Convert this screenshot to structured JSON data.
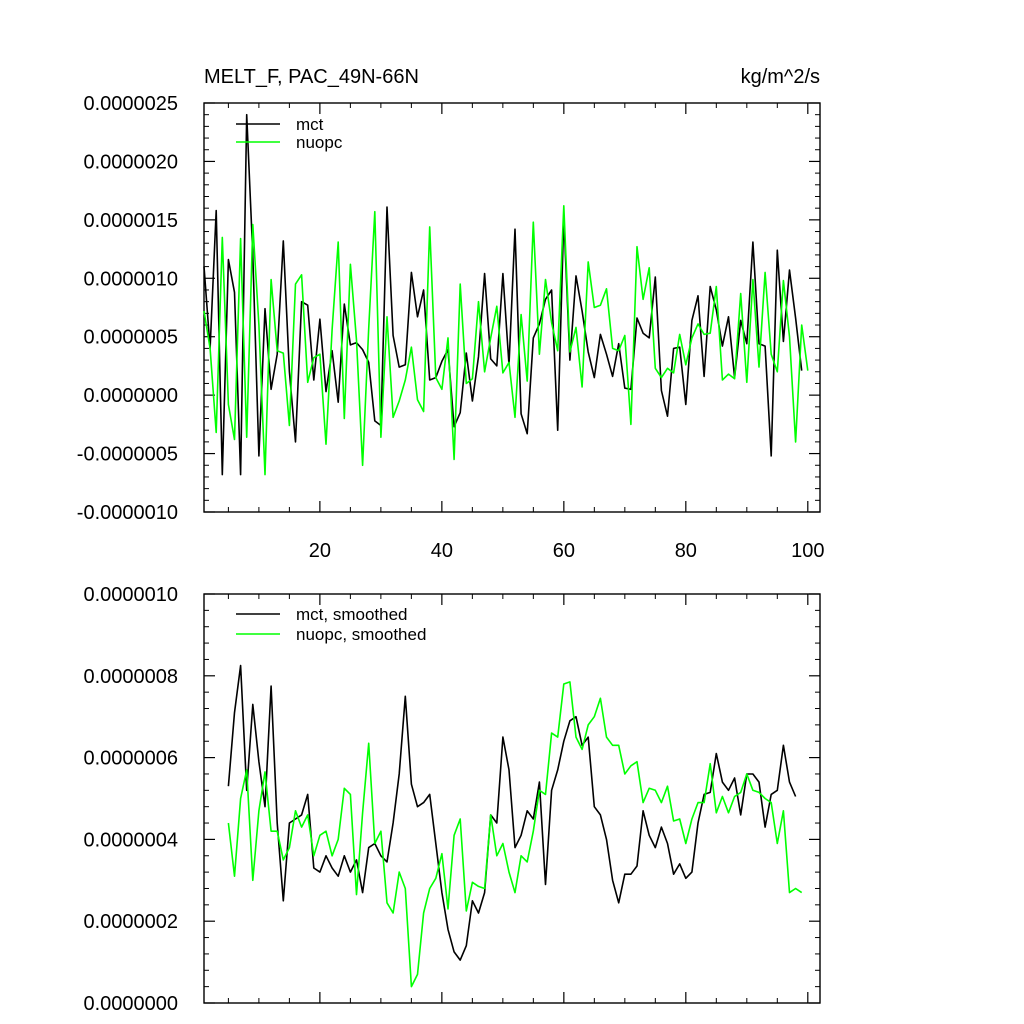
{
  "colors": {
    "mct": "#000000",
    "nuopc": "#00ff00",
    "frame": "#000000"
  },
  "chart_data": [
    {
      "type": "line",
      "title": "MELT_F, PAC_49N-66N",
      "units": "kg/m^2/s",
      "xlim": [
        1,
        102
      ],
      "ylim": [
        -1e-06,
        2.5e-06
      ],
      "x_ticks": [
        20,
        40,
        60,
        80,
        100
      ],
      "x_tick_labels": [
        "20",
        "40",
        "60",
        "80",
        "100"
      ],
      "y_ticks": [
        -1e-06,
        -5e-07,
        0,
        5e-07,
        1e-06,
        1.5e-06,
        2e-06,
        2.5e-06
      ],
      "y_tick_labels": [
        "-0.0000010",
        "-0.0000005",
        "0.0000000",
        "0.0000005",
        "0.0000010",
        "0.0000015",
        "0.0000020",
        "0.0000025"
      ],
      "legend_position": "top-left",
      "x_start": 1,
      "series": [
        {
          "name": "mct",
          "color": "#000000",
          "values": [
            1.1e-06,
            4e-07,
            1.58e-06,
            -6.8e-07,
            1.16e-06,
            8.8e-07,
            -6.8e-07,
            2.4e-06,
            1.2e-06,
            -5.2e-07,
            7.4e-07,
            5e-08,
            3.5e-07,
            1.32e-06,
            2e-07,
            -4e-07,
            8e-07,
            7.7e-07,
            1.3e-07,
            6.5e-07,
            3e-08,
            3.8e-07,
            -6e-08,
            7.8e-07,
            4.3e-07,
            4.5e-07,
            3.9e-07,
            2.8e-07,
            -2.2e-07,
            -2.6e-07,
            1.61e-06,
            5.1e-07,
            2.4e-07,
            2.6e-07,
            1.05e-06,
            6.7e-07,
            9e-07,
            1.3e-07,
            1.5e-07,
            2.9e-07,
            3.9e-07,
            -2.7e-07,
            -1.5e-07,
            3.6e-07,
            -5e-08,
            3.3e-07,
            1.04e-06,
            3.1e-07,
            2.5e-07,
            1.04e-06,
            2.6e-07,
            1.42e-06,
            -1.6e-07,
            -3.3e-07,
            4.9e-07,
            6.1e-07,
            8.2e-07,
            9e-07,
            -3e-07,
            1.52e-06,
            3e-07,
            1.02e-06,
            7.2e-07,
            3.7e-07,
            1.5e-07,
            5.2e-07,
            3.5e-07,
            1.6e-07,
            4.4e-07,
            6e-08,
            5e-08,
            6.6e-07,
            5.3e-07,
            4.9e-07,
            1.01e-06,
            4e-08,
            -1.8e-07,
            4e-07,
            4.1e-07,
            -8e-08,
            6.4e-07,
            8.5e-07,
            1.6e-07,
            9.3e-07,
            7.3e-07,
            4.2e-07,
            6.7e-07,
            1.5e-07,
            6.4e-07,
            4.4e-07,
            1.31e-06,
            4.4e-07,
            4.2e-07,
            -5.2e-07,
            1.24e-06,
            4.6e-07,
            1.07e-06,
            6.6e-07,
            2.1e-07
          ]
        },
        {
          "name": "nuopc",
          "color": "#00ff00",
          "values": [
            7.2e-07,
            4e-07,
            -3.2e-07,
            1.35e-06,
            -8e-08,
            -3.8e-07,
            1.34e-06,
            -3.6e-07,
            1.46e-06,
            6e-07,
            -6.8e-07,
            9.9e-07,
            3.8e-07,
            3.6e-07,
            -2.6e-07,
            9.5e-07,
            1.03e-06,
            1.1e-07,
            3.2e-07,
            3.5e-07,
            -4.2e-07,
            5.6e-07,
            1.31e-06,
            -2e-07,
            1.12e-06,
            4.7e-07,
            -6e-07,
            5.7e-07,
            1.57e-06,
            -3.6e-07,
            6.7e-07,
            -1.9e-07,
            -5e-08,
            1.3e-07,
            4.1e-07,
            -4e-08,
            -1.4e-07,
            1.44e-06,
            1.5e-07,
            5e-08,
            4.9e-07,
            -5.5e-07,
            9.5e-07,
            1e-07,
            1.4e-07,
            8e-07,
            2e-07,
            4.9e-07,
            7.6e-07,
            1.9e-07,
            2.8e-07,
            -1.9e-07,
            6.9e-07,
            1.2e-07,
            1.48e-06,
            3.5e-07,
            9.9e-07,
            6.2e-07,
            3.8e-07,
            1.62e-06,
            3.7e-07,
            5.8e-07,
            7e-08,
            1.14e-06,
            7.5e-07,
            7.7e-07,
            9.1e-07,
            4e-07,
            3.8e-07,
            5.1e-07,
            -2.5e-07,
            1.27e-06,
            8.2e-07,
            1.09e-06,
            2.3e-07,
            1.5e-07,
            2.3e-07,
            1.9e-07,
            5.2e-07,
            2.6e-07,
            4.9e-07,
            6.1e-07,
            5.2e-07,
            5.3e-07,
            9.3e-07,
            1.3e-07,
            1.8e-07,
            1.4e-07,
            8.7e-07,
            1.1e-07,
            9.9e-07,
            2.4e-07,
            1.05e-06,
            3.5e-07,
            2e-07,
            9.8e-07,
            5e-07,
            -4e-07,
            6e-07,
            2.1e-07
          ]
        }
      ]
    },
    {
      "type": "line",
      "xlim": [
        1,
        102
      ],
      "ylim": [
        0,
        1e-06
      ],
      "y_ticks": [
        0,
        2e-07,
        4e-07,
        6e-07,
        8e-07,
        1e-06
      ],
      "y_tick_labels": [
        "0.0000000",
        "0.0000002",
        "0.0000004",
        "0.0000006",
        "0.0000008",
        "0.0000010"
      ],
      "x_ticks": [
        20,
        40,
        60,
        80,
        100
      ],
      "legend_position": "top-left",
      "x_start": 5,
      "series": [
        {
          "name": "mct, smoothed",
          "color": "#000000",
          "values": [
            5.3e-07,
            7.1e-07,
            8.25e-07,
            5.2e-07,
            7.3e-07,
            5.9e-07,
            4.8e-07,
            7.75e-07,
            4.4e-07,
            2.5e-07,
            4.4e-07,
            4.5e-07,
            4.6e-07,
            5.1e-07,
            3.3e-07,
            3.2e-07,
            3.6e-07,
            3.3e-07,
            3.1e-07,
            3.6e-07,
            3.2e-07,
            3.5e-07,
            2.7e-07,
            3.8e-07,
            3.9e-07,
            3.6e-07,
            3.45e-07,
            4.4e-07,
            5.6e-07,
            7.5e-07,
            5.35e-07,
            4.8e-07,
            4.9e-07,
            5.1e-07,
            3.9e-07,
            2.7e-07,
            1.8e-07,
            1.25e-07,
            1.05e-07,
            1.4e-07,
            2.5e-07,
            2.2e-07,
            2.7e-07,
            4.6e-07,
            4.4e-07,
            6.5e-07,
            5.7e-07,
            3.8e-07,
            4.1e-07,
            4.7e-07,
            4.5e-07,
            5.4e-07,
            2.9e-07,
            5.2e-07,
            5.7e-07,
            6.4e-07,
            6.9e-07,
            7e-07,
            6.3e-07,
            6.5e-07,
            4.8e-07,
            4.6e-07,
            4e-07,
            3e-07,
            2.45e-07,
            3.15e-07,
            3.15e-07,
            3.35e-07,
            4.7e-07,
            4.1e-07,
            3.8e-07,
            4.3e-07,
            3.9e-07,
            3.15e-07,
            3.4e-07,
            3.05e-07,
            3.2e-07,
            4.4e-07,
            5.1e-07,
            5.15e-07,
            6.1e-07,
            5.4e-07,
            5.2e-07,
            5.5e-07,
            4.6e-07,
            5.6e-07,
            5.6e-07,
            5.4e-07,
            4.3e-07,
            5.1e-07,
            5.2e-07,
            6.3e-07,
            5.4e-07,
            5.05e-07
          ]
        },
        {
          "name": "nuopc, smoothed",
          "color": "#00ff00",
          "values": [
            4.4e-07,
            3.1e-07,
            5e-07,
            5.7e-07,
            3e-07,
            4.7e-07,
            5.65e-07,
            4.2e-07,
            4.2e-07,
            3.5e-07,
            3.8e-07,
            4.7e-07,
            4.3e-07,
            4.6e-07,
            3.6e-07,
            4.1e-07,
            4.2e-07,
            3.6e-07,
            4e-07,
            5.25e-07,
            5.1e-07,
            2.65e-07,
            4.65e-07,
            6.35e-07,
            3.9e-07,
            4.2e-07,
            2.45e-07,
            2.2e-07,
            3.2e-07,
            2.8e-07,
            4e-08,
            7e-08,
            2.2e-07,
            2.8e-07,
            3.05e-07,
            3.65e-07,
            2.3e-07,
            4.1e-07,
            4.5e-07,
            2.25e-07,
            2.95e-07,
            2.85e-07,
            2.8e-07,
            4.6e-07,
            3.6e-07,
            3.9e-07,
            3.2e-07,
            2.7e-07,
            3.6e-07,
            3.45e-07,
            4.2e-07,
            5.2e-07,
            5.1e-07,
            6.6e-07,
            6.5e-07,
            7.8e-07,
            7.85e-07,
            6.5e-07,
            6.2e-07,
            6.8e-07,
            7e-07,
            7.45e-07,
            6.5e-07,
            6.3e-07,
            6.3e-07,
            5.6e-07,
            5.8e-07,
            5.9e-07,
            4.9e-07,
            5.25e-07,
            5.2e-07,
            4.9e-07,
            5.3e-07,
            4.45e-07,
            4.5e-07,
            3.9e-07,
            4.5e-07,
            4.9e-07,
            4.9e-07,
            5.85e-07,
            4.65e-07,
            5.05e-07,
            4.65e-07,
            5.05e-07,
            5.15e-07,
            5.6e-07,
            5.2e-07,
            5.15e-07,
            5e-07,
            4.9e-07,
            3.9e-07,
            4.7e-07,
            2.7e-07,
            2.8e-07,
            2.7e-07
          ]
        }
      ]
    }
  ]
}
